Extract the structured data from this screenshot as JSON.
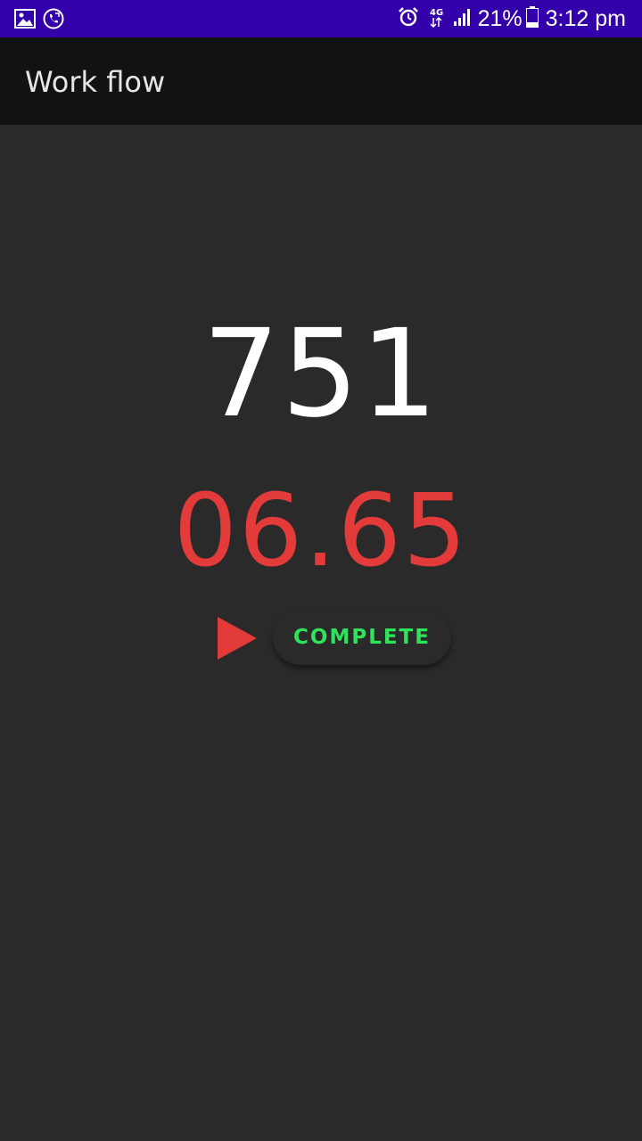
{
  "status_bar": {
    "left_icons": [
      "image-icon",
      "call-icon"
    ],
    "right_icons": [
      "alarm-icon",
      "data-4g-icon",
      "signal-icon"
    ],
    "battery_text": "21%",
    "time": "3:12 pm",
    "background": "#3300aa"
  },
  "app_bar": {
    "title": "Work flow",
    "background": "#121212"
  },
  "main": {
    "counter": "751",
    "timer": "06.65",
    "play_icon": "play-icon",
    "complete_label": "COMPLETE",
    "colors": {
      "background": "#2a2a2a",
      "counter": "#ffffff",
      "timer": "#e33a3a",
      "play": "#e33a3a",
      "complete": "#2fe35a"
    }
  }
}
